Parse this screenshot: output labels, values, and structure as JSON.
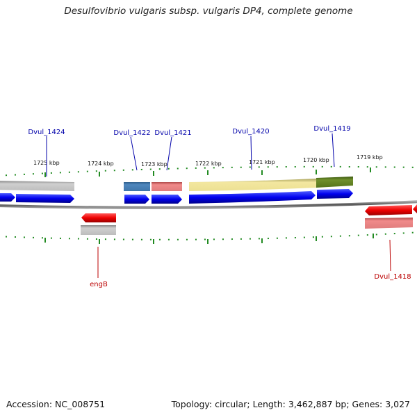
{
  "title": "Desulfovibrio vulgaris subsp. vulgaris DP4, complete genome",
  "footer": {
    "accession": "Accession: NC_008751",
    "summary": "Topology: circular; Length: 3,462,887 bp; Genes: 3,027"
  },
  "colors": {
    "cds": "#0000ee",
    "tick": "#228b22",
    "label_forward": "#0000aa",
    "label_reverse": "#bb0000",
    "backbone": "#777777"
  },
  "kbp_ticks": [
    "1725 kbp",
    "1724 kbp",
    "1723 kbp",
    "1722 kbp",
    "1721 kbp",
    "1720 kbp",
    "1719 kbp"
  ],
  "gene_labels": {
    "dvul_1424": "Dvul_1424",
    "dvul_1422": "Dvul_1422",
    "dvul_1421": "Dvul_1421",
    "dvul_1420": "Dvul_1420",
    "dvul_1419": "Dvul_1419",
    "engb": "engB",
    "dvul_1418": "Dvul_1418"
  }
}
